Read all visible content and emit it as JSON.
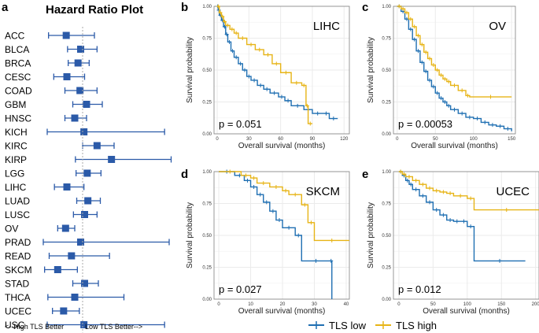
{
  "colors": {
    "low": "#1f6fb2",
    "high": "#e7b416",
    "forest": "#2b5aa8",
    "grid": "#ebebeb",
    "panel_border": "#7f7f7f"
  },
  "legend": {
    "low_label": "TLS low",
    "high_label": "TLS high"
  },
  "chart_data": [
    {
      "type": "forest",
      "panel": "a",
      "title": "Hazard Ratio Plot",
      "xlim": [
        0.4,
        2.5
      ],
      "xticks": [
        "0.5",
        "1.0",
        "1.5",
        "2.0",
        "2.5"
      ],
      "reference_line": 1.0,
      "footer_left": "<--High TLS Better",
      "footer_right": "Low TLS Better-->",
      "rows": [
        {
          "label": "ACC",
          "hr": 0.75,
          "lo": 0.48,
          "hi": 1.18
        },
        {
          "label": "BLCA",
          "hr": 0.97,
          "lo": 0.77,
          "hi": 1.22
        },
        {
          "label": "BRCA",
          "hr": 0.93,
          "lo": 0.78,
          "hi": 1.1
        },
        {
          "label": "CESC",
          "hr": 0.76,
          "lo": 0.56,
          "hi": 1.03
        },
        {
          "label": "COAD",
          "hr": 0.96,
          "lo": 0.73,
          "hi": 1.22
        },
        {
          "label": "GBM",
          "hr": 1.06,
          "lo": 0.85,
          "hi": 1.3
        },
        {
          "label": "HNSC",
          "hr": 0.88,
          "lo": 0.73,
          "hi": 1.06
        },
        {
          "label": "KICH",
          "hr": 1.02,
          "lo": 0.46,
          "hi": 2.25
        },
        {
          "label": "KIRC",
          "hr": 1.22,
          "lo": 1.0,
          "hi": 1.48
        },
        {
          "label": "KIRP",
          "hr": 1.44,
          "lo": 0.89,
          "hi": 2.35
        },
        {
          "label": "LGG",
          "hr": 1.07,
          "lo": 0.9,
          "hi": 1.28
        },
        {
          "label": "LIHC",
          "hr": 0.76,
          "lo": 0.57,
          "hi": 1.02
        },
        {
          "label": "LUAD",
          "hr": 1.08,
          "lo": 0.91,
          "hi": 1.27
        },
        {
          "label": "LUSC",
          "hr": 1.03,
          "lo": 0.86,
          "hi": 1.22
        },
        {
          "label": "OV",
          "hr": 0.74,
          "lo": 0.62,
          "hi": 0.88
        },
        {
          "label": "PRAD",
          "hr": 0.97,
          "lo": 0.4,
          "hi": 2.32
        },
        {
          "label": "READ",
          "hr": 0.83,
          "lo": 0.49,
          "hi": 1.41
        },
        {
          "label": "SKCM",
          "hr": 0.62,
          "lo": 0.42,
          "hi": 0.92
        },
        {
          "label": "STAD",
          "hr": 1.03,
          "lo": 0.85,
          "hi": 1.24
        },
        {
          "label": "THCA",
          "hr": 0.88,
          "lo": 0.47,
          "hi": 1.63
        },
        {
          "label": "UCEC",
          "hr": 0.71,
          "lo": 0.54,
          "hi": 0.95
        },
        {
          "label": "USC",
          "hr": 1.02,
          "lo": 0.46,
          "hi": 2.25
        }
      ]
    },
    {
      "type": "line",
      "subtype": "kaplan-meier",
      "panel": "b",
      "cancer": "LIHC",
      "pvalue": "p = 0.051",
      "xlabel": "Overall survival (months)",
      "ylabel": "Survival probability",
      "xlim": [
        -3,
        125
      ],
      "xticks": [
        0,
        30,
        60,
        90,
        120
      ],
      "ylim": [
        0,
        1
      ],
      "yticks": [
        "0.00",
        "0.25",
        "0.50",
        "0.75",
        "1.00"
      ],
      "series": [
        {
          "name": "TLS low",
          "x": [
            0,
            1,
            2,
            4,
            6,
            8,
            10,
            13,
            16,
            20,
            24,
            28,
            32,
            38,
            44,
            50,
            58,
            64,
            70,
            82,
            90,
            100,
            106,
            114
          ],
          "y": [
            1.0,
            0.97,
            0.93,
            0.89,
            0.84,
            0.78,
            0.72,
            0.65,
            0.6,
            0.55,
            0.5,
            0.45,
            0.42,
            0.38,
            0.35,
            0.32,
            0.29,
            0.26,
            0.22,
            0.19,
            0.16,
            0.16,
            0.12,
            0.12
          ]
        },
        {
          "name": "TLS high",
          "x": [
            0,
            2,
            4,
            6,
            8,
            12,
            16,
            20,
            28,
            36,
            44,
            52,
            60,
            70,
            80,
            84,
            86,
            90
          ],
          "y": [
            1.0,
            0.95,
            0.92,
            0.88,
            0.85,
            0.82,
            0.79,
            0.75,
            0.7,
            0.66,
            0.62,
            0.55,
            0.48,
            0.4,
            0.38,
            0.22,
            0.08,
            0.08
          ]
        }
      ]
    },
    {
      "type": "line",
      "subtype": "kaplan-meier",
      "panel": "c",
      "cancer": "OV",
      "pvalue": "p = 0.00053",
      "xlabel": "Overall survival (months)",
      "ylabel": "Survival probability",
      "xlim": [
        -5,
        155
      ],
      "xticks": [
        0,
        50,
        100,
        150
      ],
      "ylim": [
        0,
        1
      ],
      "yticks": [
        "0.00",
        "0.25",
        "0.50",
        "0.75",
        "1.00"
      ],
      "series": [
        {
          "name": "TLS low",
          "x": [
            0,
            5,
            10,
            15,
            20,
            25,
            30,
            35,
            40,
            45,
            50,
            55,
            60,
            65,
            70,
            80,
            90,
            100,
            110,
            120,
            130,
            140,
            150
          ],
          "y": [
            1.0,
            0.96,
            0.9,
            0.82,
            0.74,
            0.65,
            0.56,
            0.49,
            0.42,
            0.37,
            0.32,
            0.28,
            0.25,
            0.22,
            0.19,
            0.16,
            0.13,
            0.12,
            0.09,
            0.07,
            0.06,
            0.04,
            0.02
          ]
        },
        {
          "name": "TLS high",
          "x": [
            0,
            5,
            10,
            15,
            20,
            25,
            30,
            35,
            40,
            45,
            50,
            55,
            60,
            65,
            70,
            80,
            90,
            95,
            150
          ],
          "y": [
            1.0,
            0.98,
            0.95,
            0.9,
            0.84,
            0.77,
            0.7,
            0.64,
            0.59,
            0.54,
            0.5,
            0.46,
            0.43,
            0.41,
            0.38,
            0.34,
            0.3,
            0.29,
            0.29
          ]
        }
      ]
    },
    {
      "type": "line",
      "subtype": "kaplan-meier",
      "panel": "d",
      "cancer": "SKCM",
      "pvalue": "p = 0.027",
      "xlabel": "Overall survival (months)",
      "ylabel": "Survival probability",
      "xlim": [
        -1.5,
        41
      ],
      "xticks": [
        0,
        10,
        20,
        30,
        40
      ],
      "ylim": [
        0,
        1
      ],
      "yticks": [
        "0.00",
        "0.25",
        "0.50",
        "0.75",
        "1.00"
      ],
      "series": [
        {
          "name": "TLS low",
          "x": [
            0,
            5,
            8,
            10,
            12,
            14,
            16,
            18,
            20,
            24,
            26,
            35,
            35.5
          ],
          "y": [
            1.0,
            0.97,
            0.93,
            0.88,
            0.82,
            0.76,
            0.69,
            0.62,
            0.56,
            0.5,
            0.3,
            0.3,
            0.0
          ]
        },
        {
          "name": "TLS high",
          "x": [
            0,
            7,
            10,
            12,
            16,
            20,
            22,
            26,
            28,
            30,
            41
          ],
          "y": [
            1.0,
            0.97,
            0.95,
            0.91,
            0.88,
            0.85,
            0.82,
            0.74,
            0.6,
            0.46,
            0.46
          ]
        }
      ]
    },
    {
      "type": "line",
      "subtype": "kaplan-meier",
      "panel": "e",
      "cancer": "UCEC",
      "pvalue": "p = 0.012",
      "xlabel": "Overall survival (months)",
      "ylabel": "Survival probability",
      "xlim": [
        -8,
        205
      ],
      "xticks": [
        0,
        50,
        100,
        150,
        200
      ],
      "ylim": [
        0,
        1
      ],
      "yticks": [
        "0.00",
        "0.25",
        "0.50",
        "0.75",
        "1.00"
      ],
      "series": [
        {
          "name": "TLS low",
          "x": [
            0,
            5,
            10,
            15,
            20,
            30,
            40,
            50,
            60,
            70,
            80,
            90,
            100,
            110,
            185
          ],
          "y": [
            1.0,
            0.97,
            0.93,
            0.9,
            0.86,
            0.81,
            0.76,
            0.7,
            0.66,
            0.62,
            0.61,
            0.61,
            0.57,
            0.3,
            0.3
          ]
        },
        {
          "name": "TLS high",
          "x": [
            0,
            5,
            10,
            20,
            30,
            40,
            50,
            60,
            70,
            80,
            100,
            110,
            205
          ],
          "y": [
            1.0,
            0.98,
            0.96,
            0.93,
            0.9,
            0.87,
            0.85,
            0.84,
            0.83,
            0.81,
            0.79,
            0.7,
            0.7
          ]
        }
      ]
    }
  ]
}
